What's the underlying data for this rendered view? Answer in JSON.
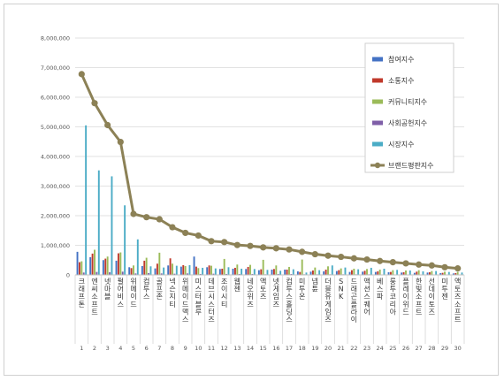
{
  "chart_data": {
    "type": "bar",
    "categories": [
      "크래프톤",
      "엔씨소프트",
      "넷마블",
      "펄어비스",
      "위메이드",
      "컴투스",
      "골프존",
      "넥슨지티",
      "위메이드맥스",
      "미스터블루",
      "데브시스터즈",
      "조이시티",
      "웹젠",
      "네오위즈",
      "액토즈",
      "넷게임즈",
      "컴투스홀딩스",
      "미투온",
      "넵튠",
      "더블유게임즈",
      "SNK",
      "드래곤플라이",
      "액션스퀘어",
      "베스파",
      "룽투코리아",
      "플레이위드",
      "한빛소프트",
      "선데이토즈",
      "미투젠",
      "액토즈소프트"
    ],
    "ranks": [
      "1",
      "2",
      "3",
      "4",
      "5",
      "6",
      "7",
      "8",
      "9",
      "10",
      "11",
      "12",
      "13",
      "14",
      "15",
      "16",
      "17",
      "18",
      "19",
      "20",
      "21",
      "22",
      "23",
      "24",
      "25",
      "26",
      "27",
      "28",
      "29",
      "30"
    ],
    "ylim": [
      0,
      8000000
    ],
    "yticks": [
      "0",
      "1,000,000",
      "2,000,000",
      "3,000,000",
      "4,000,000",
      "5,000,000",
      "6,000,000",
      "7,000,000",
      "8,000,000"
    ],
    "grid": true,
    "legend_position": "right",
    "series": [
      {
        "name": "참여지수",
        "color": "#4472c4",
        "kind": "bar",
        "values": [
          780000,
          600000,
          500000,
          480000,
          260000,
          300000,
          220000,
          320000,
          280000,
          620000,
          260000,
          200000,
          210000,
          200000,
          160000,
          180000,
          180000,
          120000,
          110000,
          120000,
          130000,
          100000,
          110000,
          100000,
          90000,
          80000,
          70000,
          80000,
          60000,
          50000
        ]
      },
      {
        "name": "소통지수",
        "color": "#c0392b",
        "kind": "bar",
        "values": [
          430000,
          720000,
          550000,
          730000,
          230000,
          480000,
          380000,
          560000,
          330000,
          280000,
          320000,
          210000,
          240000,
          270000,
          190000,
          200000,
          180000,
          100000,
          150000,
          180000,
          160000,
          160000,
          140000,
          120000,
          100000,
          90000,
          110000,
          90000,
          70000,
          60000
        ]
      },
      {
        "name": "커뮤니티지수",
        "color": "#9bbb59",
        "kind": "bar",
        "values": [
          460000,
          850000,
          620000,
          760000,
          320000,
          580000,
          750000,
          380000,
          300000,
          230000,
          310000,
          540000,
          350000,
          340000,
          510000,
          320000,
          270000,
          520000,
          250000,
          290000,
          220000,
          210000,
          200000,
          180000,
          160000,
          150000,
          160000,
          130000,
          110000,
          100000
        ]
      },
      {
        "name": "사회공헌지수",
        "color": "#7f5fa8",
        "kind": "bar",
        "values": [
          80000,
          100000,
          90000,
          110000,
          50000,
          60000,
          50000,
          40000,
          50000,
          30000,
          40000,
          30000,
          30000,
          30000,
          20000,
          30000,
          30000,
          20000,
          20000,
          20000,
          20000,
          20000,
          20000,
          10000,
          10000,
          10000,
          10000,
          10000,
          10000,
          10000
        ]
      },
      {
        "name": "시장지수",
        "color": "#4bacc6",
        "kind": "bar",
        "values": [
          5050000,
          3530000,
          3330000,
          2350000,
          1200000,
          290000,
          250000,
          310000,
          330000,
          240000,
          220000,
          260000,
          210000,
          200000,
          170000,
          140000,
          190000,
          80000,
          160000,
          320000,
          250000,
          190000,
          240000,
          210000,
          170000,
          150000,
          120000,
          130000,
          100000,
          80000
        ]
      },
      {
        "name": "브랜드평판지수",
        "color": "#8c8156",
        "kind": "line",
        "values": [
          6780000,
          5800000,
          5060000,
          4490000,
          2060000,
          1950000,
          1880000,
          1610000,
          1420000,
          1330000,
          1140000,
          1110000,
          1010000,
          980000,
          930000,
          900000,
          860000,
          780000,
          700000,
          650000,
          610000,
          560000,
          520000,
          470000,
          430000,
          390000,
          350000,
          320000,
          260000,
          220000
        ]
      }
    ]
  }
}
